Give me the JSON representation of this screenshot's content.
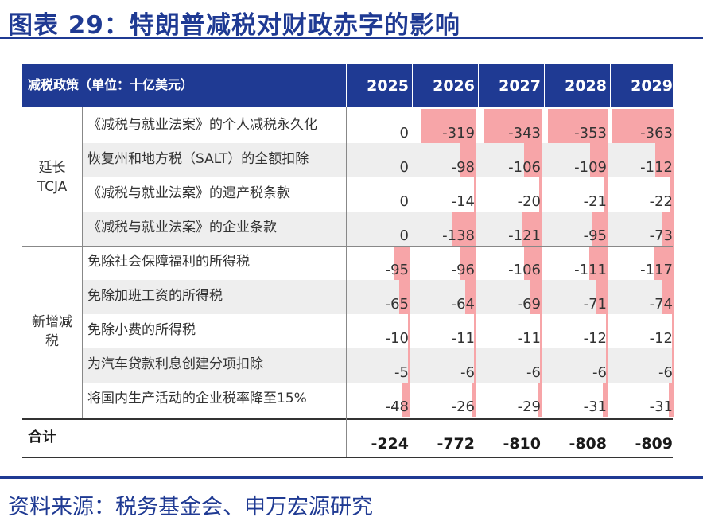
{
  "title": "图表 29：特朗普减税对财政赤字的影响",
  "source": "资料来源：税务基金会、申万宏源研究",
  "table": {
    "header_label": "减税政策（单位：十亿美元）",
    "years": [
      "2025",
      "2026",
      "2027",
      "2028",
      "2029"
    ],
    "groups": [
      {
        "label_lines": [
          "延长",
          "TCJA"
        ]
      },
      {
        "label_lines": [
          "新增减",
          "税"
        ]
      }
    ],
    "rows": [
      {
        "group": 0,
        "label": "《减税与就业法案》的个人减税永久化",
        "values": [
          0,
          -319,
          -343,
          -353,
          -363
        ],
        "display": [
          "0",
          "-319",
          "-343",
          "-353",
          "-363"
        ]
      },
      {
        "group": 0,
        "label": "恢复州和地方税（SALT）的全额扣除",
        "values": [
          0,
          -98,
          -106,
          -109,
          -112
        ],
        "display": [
          "0",
          "-98",
          "-106",
          "-109",
          "-112"
        ]
      },
      {
        "group": 0,
        "label": "《减税与就业法案》的遗产税条款",
        "values": [
          0,
          -14,
          -20,
          -21,
          -22
        ],
        "display": [
          "0",
          "-14",
          "-20",
          "-21",
          "-22"
        ]
      },
      {
        "group": 0,
        "label": "《减税与就业法案》的企业条款",
        "values": [
          0,
          -138,
          -121,
          -95,
          -73
        ],
        "display": [
          "0",
          "-138",
          "-121",
          "-95",
          "-73"
        ]
      },
      {
        "group": 1,
        "label": "免除社会保障福利的所得税",
        "values": [
          -95,
          -96,
          -106,
          -111,
          -117
        ],
        "display": [
          "-95",
          "-96",
          "-106",
          "-111",
          "-117"
        ]
      },
      {
        "group": 1,
        "label": "免除加班工资的所得税",
        "values": [
          -65,
          -64,
          -69,
          -71,
          -74
        ],
        "display": [
          "-65",
          "-64",
          "-69",
          "-71",
          "-74"
        ]
      },
      {
        "group": 1,
        "label": "免除小费的所得税",
        "values": [
          -10,
          -11,
          -11,
          -12,
          -12
        ],
        "display": [
          "-10",
          "-11",
          "-11",
          "-12",
          "-12"
        ]
      },
      {
        "group": 1,
        "label": "为汽车贷款利息创建分项扣除",
        "values": [
          -5,
          -6,
          -6,
          -6,
          -6
        ],
        "display": [
          "-5",
          "-6",
          "-6",
          "-6",
          "-6"
        ]
      },
      {
        "group": 1,
        "label": "将国内生产活动的企业税率降至15%",
        "values": [
          -48,
          -26,
          -29,
          -31,
          -31
        ],
        "display": [
          "-48",
          "-26",
          "-29",
          "-31",
          "-31"
        ]
      }
    ],
    "total": {
      "label": "合计",
      "display": [
        "-224",
        "-772",
        "-810",
        "-808",
        "-809"
      ],
      "values": [
        -224,
        -772,
        -810,
        -808,
        -809
      ]
    },
    "colors": {
      "header_bg": "#1f3a93",
      "bar": "#f7a5a8",
      "shade": "#eeeeee",
      "title": "#1f3a93"
    }
  }
}
